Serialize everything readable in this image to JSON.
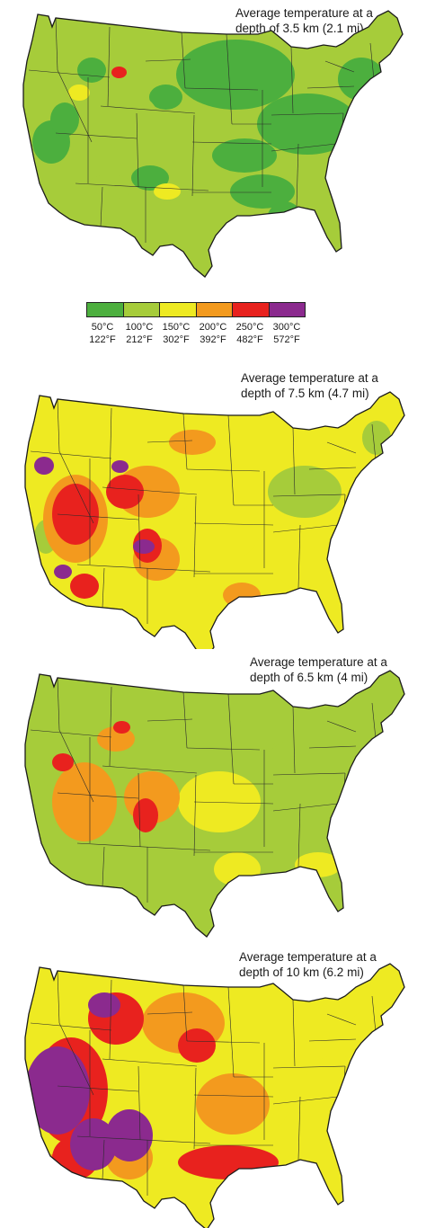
{
  "maps": [
    {
      "title_line1": "Average temperature at a",
      "title_line2": "depth of 3.5 km (2.1 mi)",
      "scheme": "cool",
      "base_class": "100°C",
      "blob_classes": [
        "50°C",
        "50°C",
        "50°C",
        "100°C",
        "150°C",
        "250°C"
      ]
    },
    {
      "title_line1": "Average temperature at a",
      "title_line2": "depth of 7.5 km (4.7 mi)",
      "scheme": "warm",
      "base_class": "150°C",
      "blob_classes": [
        "100°C",
        "150°C",
        "200°C",
        "250°C",
        "300°C"
      ]
    },
    {
      "title_line1": "Average temperature at a",
      "title_line2": "depth of 6.5 km (4 mi)",
      "scheme": "mild",
      "base_class": "100°C",
      "blob_classes": [
        "100°C",
        "150°C",
        "200°C",
        "250°C"
      ]
    },
    {
      "title_line1": "Average temperature at a",
      "title_line2": "depth of 10 km (6.2 mi)",
      "scheme": "hot",
      "base_class": "150°C",
      "blob_classes": [
        "150°C",
        "200°C",
        "250°C",
        "300°C"
      ]
    }
  ],
  "legend": {
    "classes": [
      {
        "celsius": "50°C",
        "fahrenheit": "122°F",
        "color": "#4caf3e"
      },
      {
        "celsius": "100°C",
        "fahrenheit": "212°F",
        "color": "#a6cc3a"
      },
      {
        "celsius": "150°C",
        "fahrenheit": "302°F",
        "color": "#eeea22"
      },
      {
        "celsius": "200°C",
        "fahrenheit": "392°F",
        "color": "#f39a1e"
      },
      {
        "celsius": "250°C",
        "fahrenheit": "482°F",
        "color": "#e8221e"
      },
      {
        "celsius": "300°C",
        "fahrenheit": "572°F",
        "color": "#8b2a8e"
      }
    ]
  }
}
